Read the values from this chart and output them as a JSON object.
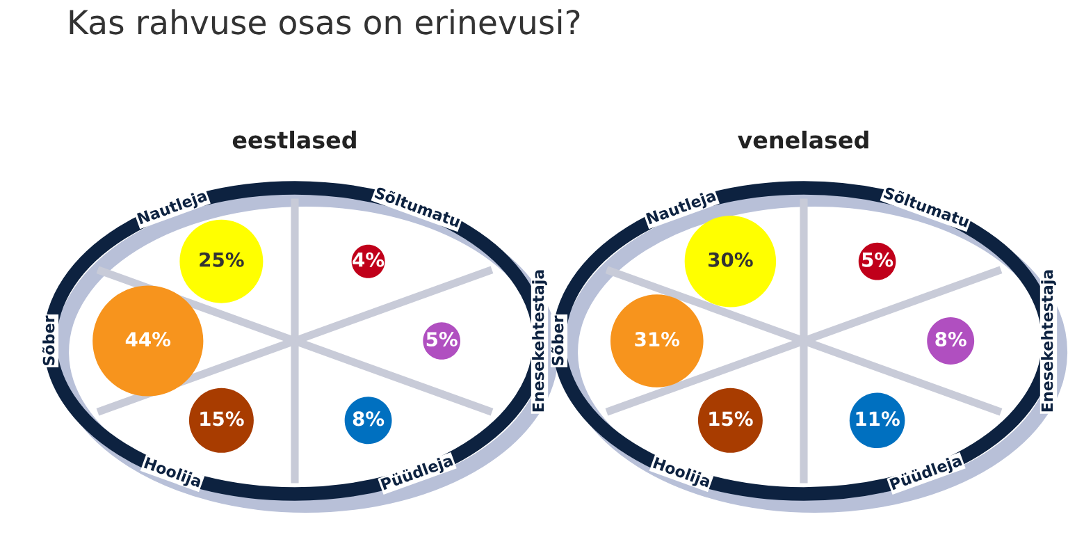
{
  "chart_data": [
    {
      "type": "other",
      "title": "eestlased",
      "annotations": [
        "Kas rahvuse osas on erinevusi?"
      ],
      "categories": [
        "Nautleja",
        "Sõltumatu",
        "Enesekehtestaja",
        "Püüdleja",
        "Hoolija",
        "Sõber"
      ],
      "values": [
        25,
        4,
        5,
        8,
        15,
        44
      ],
      "value_labels": [
        "25%",
        "4%",
        "5%",
        "8%",
        "15%",
        "44%"
      ],
      "colors": [
        "#ffff00",
        "#c0001a",
        "#b04fc0",
        "#0070c0",
        "#a83c00",
        "#f7941d"
      ]
    },
    {
      "type": "other",
      "title": "venelased",
      "categories": [
        "Nautleja",
        "Sõltumatu",
        "Enesekehtestaja",
        "Püüdleja",
        "Hoolija",
        "Sõber"
      ],
      "values": [
        30,
        5,
        8,
        11,
        15,
        31
      ],
      "value_labels": [
        "30%",
        "5%",
        "8%",
        "11%",
        "15%",
        "31%"
      ],
      "colors": [
        "#ffff00",
        "#c0001a",
        "#b04fc0",
        "#0070c0",
        "#a83c00",
        "#f7941d"
      ]
    }
  ]
}
